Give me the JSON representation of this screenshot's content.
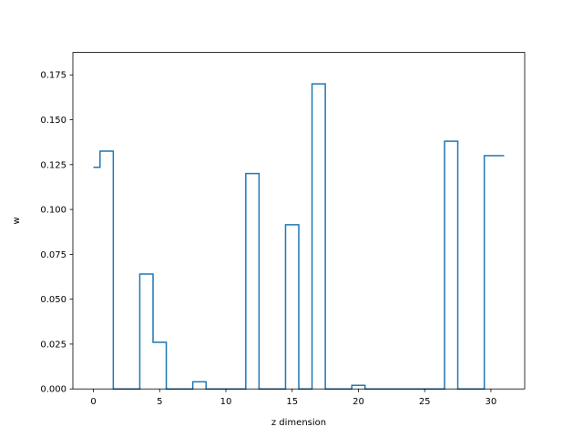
{
  "chart_data": {
    "type": "line",
    "step": "post",
    "xlabel": "z dimension",
    "ylabel": "w",
    "xlim": [
      -1.55,
      32.55
    ],
    "ylim": [
      0,
      0.1875
    ],
    "xticks": [
      0,
      5,
      10,
      15,
      20,
      25,
      30
    ],
    "xtick_labels": [
      "0",
      "5",
      "10",
      "15",
      "20",
      "25",
      "30"
    ],
    "yticks": [
      0,
      0.025,
      0.05,
      0.075,
      0.1,
      0.125,
      0.15,
      0.175
    ],
    "ytick_labels": [
      "0.000",
      "0.025",
      "0.050",
      "0.075",
      "0.100",
      "0.125",
      "0.150",
      "0.175"
    ],
    "grid": false,
    "series": [
      {
        "color": "#1f77b4",
        "x": [
          0,
          1,
          2,
          3,
          4,
          5,
          6,
          7,
          8,
          9,
          10,
          11,
          12,
          13,
          14,
          15,
          16,
          17,
          18,
          19,
          20,
          21,
          22,
          23,
          24,
          25,
          26,
          27,
          28,
          29,
          30,
          31
        ],
        "values": [
          0.1235,
          0.1325,
          0,
          0,
          0.064,
          0.026,
          0,
          0,
          0.004,
          0,
          0,
          0,
          0.12,
          0,
          0,
          0.0915,
          0,
          0.17,
          0,
          0,
          0.002,
          0,
          0,
          0,
          0,
          0,
          0,
          0.138,
          0,
          0,
          0.13,
          0.13
        ]
      }
    ]
  }
}
